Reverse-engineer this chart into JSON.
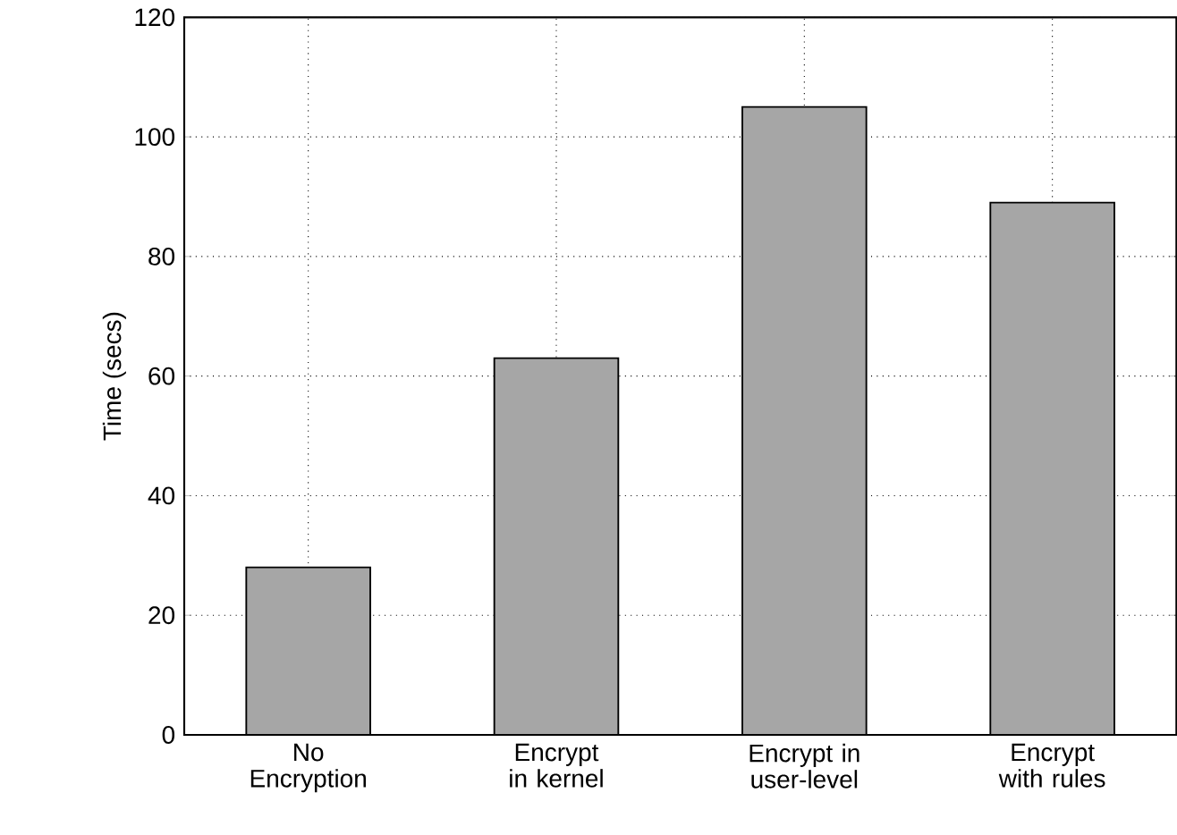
{
  "chart_data": {
    "type": "bar",
    "ylabel": "Time (secs)",
    "categories": [
      "No Encryption",
      "Encrypt in kernel",
      "Encrypt in user-level",
      "Encrypt with rules"
    ],
    "values": [
      28,
      63,
      105,
      89
    ],
    "color": "#a6a6a6",
    "ylim": [
      0,
      120
    ],
    "yticks": [
      0,
      20,
      40,
      60,
      80,
      100,
      120
    ],
    "grid": true
  }
}
